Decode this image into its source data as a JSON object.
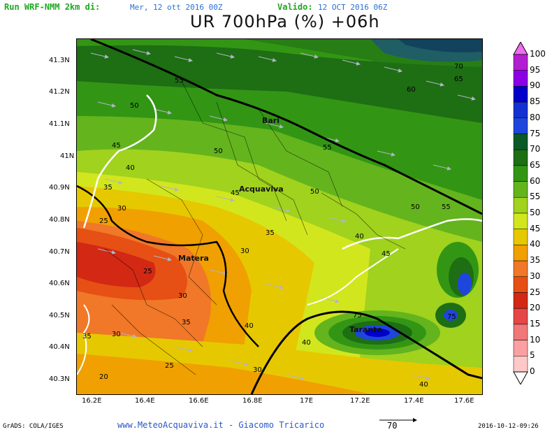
{
  "header": {
    "run_label": "Run WRF-NMM 2km di:",
    "run_date": "Mer, 12 ott 2016 00Z",
    "valid_label": "Valido:",
    "valid_date": "12 OCT 2016 06Z",
    "title": "UR 700hPa (%) +06h"
  },
  "axes": {
    "y_labels": [
      "41.3N",
      "41.2N",
      "41.1N",
      "41N",
      "40.9N",
      "40.8N",
      "40.7N",
      "40.6N",
      "40.5N",
      "40.4N",
      "40.3N"
    ],
    "x_labels": [
      "16.2E",
      "16.4E",
      "16.6E",
      "16.8E",
      "17E",
      "17.2E",
      "17.4E",
      "17.6E"
    ]
  },
  "cities": {
    "bari": "Bari",
    "acquaviva": "Acquaviva",
    "matera": "Matera",
    "taranto": "Taranto"
  },
  "contour_labels": [
    "70",
    "65",
    "60",
    "55",
    "50",
    "45",
    "40",
    "35",
    "30",
    "25",
    "20",
    "75"
  ],
  "colorbar": {
    "labels": [
      "100",
      "95",
      "90",
      "85",
      "80",
      "75",
      "70",
      "65",
      "60",
      "55",
      "50",
      "45",
      "40",
      "35",
      "30",
      "25",
      "20",
      "15",
      "10",
      "5",
      "0"
    ],
    "colors": [
      "#f06cf0",
      "#b41ed2",
      "#8c00e6",
      "#0000c8",
      "#1432d2",
      "#1e46dc",
      "#0a5a28",
      "#1e6e14",
      "#329614",
      "#64b41e",
      "#a0d21e",
      "#d2e61e",
      "#e6c800",
      "#f0a000",
      "#f07828",
      "#e65014",
      "#d22814",
      "#e64646",
      "#f07878",
      "#faa0a0",
      "#ffc8c8"
    ]
  },
  "footer": {
    "grads": "GrADS: COLA/IGES",
    "site": "www.MeteoAcquaviva.it - Giacomo Tricarico",
    "vector_ref": "70",
    "timestamp": "2016-10-12-09:26"
  }
}
